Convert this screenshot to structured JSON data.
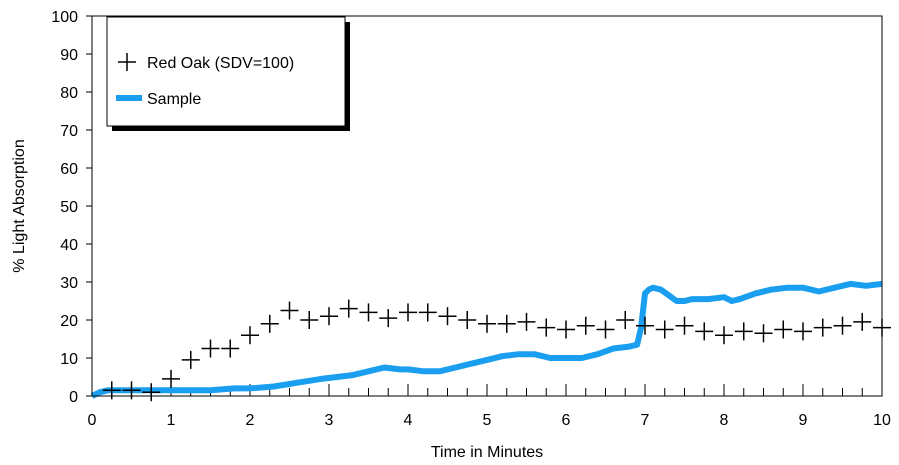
{
  "chart_data": {
    "type": "line",
    "title": "",
    "xlabel": "Time in Minutes",
    "ylabel": "% Light Absorption",
    "xlim": [
      0,
      10
    ],
    "ylim": [
      0,
      100
    ],
    "xticks": [
      "0",
      "1",
      "2",
      "3",
      "4",
      "5",
      "6",
      "7",
      "8",
      "9",
      "10"
    ],
    "yticks": [
      "0",
      "10",
      "20",
      "30",
      "40",
      "50",
      "60",
      "70",
      "80",
      "90",
      "100"
    ],
    "grid": false,
    "legend_position": "top-left",
    "series": [
      {
        "name": "Red Oak (SDV=100)",
        "style": "plus-markers",
        "color": "#000000",
        "x": [
          0.25,
          0.5,
          0.75,
          1.0,
          1.25,
          1.5,
          1.75,
          2.0,
          2.25,
          2.5,
          2.75,
          3.0,
          3.25,
          3.5,
          3.75,
          4.0,
          4.25,
          4.5,
          4.75,
          5.0,
          5.25,
          5.5,
          5.75,
          6.0,
          6.25,
          6.5,
          6.75,
          7.0,
          7.25,
          7.5,
          7.75,
          8.0,
          8.25,
          8.5,
          8.75,
          9.0,
          9.25,
          9.5,
          9.75,
          10.0
        ],
        "y": [
          1.5,
          1.5,
          1,
          4.5,
          9.5,
          12.5,
          12.5,
          16,
          19,
          22.5,
          20,
          21,
          23,
          22,
          20.5,
          22,
          22,
          21,
          20,
          19,
          19,
          19.5,
          18,
          17.5,
          18.5,
          17.5,
          20,
          18.5,
          17.5,
          18.5,
          17,
          16,
          17,
          16.5,
          17.5,
          17,
          18,
          18.5,
          19.5,
          18
        ]
      },
      {
        "name": "Sample",
        "style": "thick-line",
        "color": "#1a9ff0",
        "x": [
          0,
          0.1,
          0.2,
          0.5,
          0.8,
          1.0,
          1.2,
          1.5,
          1.8,
          2.0,
          2.3,
          2.6,
          2.9,
          3.1,
          3.3,
          3.5,
          3.7,
          3.9,
          4.0,
          4.2,
          4.4,
          4.6,
          4.8,
          5.0,
          5.2,
          5.4,
          5.6,
          5.8,
          6.0,
          6.2,
          6.4,
          6.6,
          6.8,
          6.9,
          6.95,
          7.0,
          7.05,
          7.1,
          7.2,
          7.3,
          7.4,
          7.5,
          7.6,
          7.8,
          8.0,
          8.1,
          8.2,
          8.4,
          8.6,
          8.8,
          9.0,
          9.2,
          9.4,
          9.6,
          9.8,
          10.0
        ],
        "y": [
          0,
          1,
          1.5,
          1.5,
          1.5,
          1.5,
          1.5,
          1.5,
          2,
          2,
          2.5,
          3.5,
          4.5,
          5,
          5.5,
          6.5,
          7.5,
          7,
          7,
          6.5,
          6.5,
          7.5,
          8.5,
          9.5,
          10.5,
          11,
          11,
          10,
          10,
          10,
          11,
          12.5,
          13,
          13.5,
          18,
          27,
          28,
          28.5,
          28,
          26.5,
          25,
          25,
          25.5,
          25.5,
          26,
          25,
          25.5,
          27,
          28,
          28.5,
          28.5,
          27.5,
          28.5,
          29.5,
          29,
          29.5
        ]
      }
    ]
  }
}
